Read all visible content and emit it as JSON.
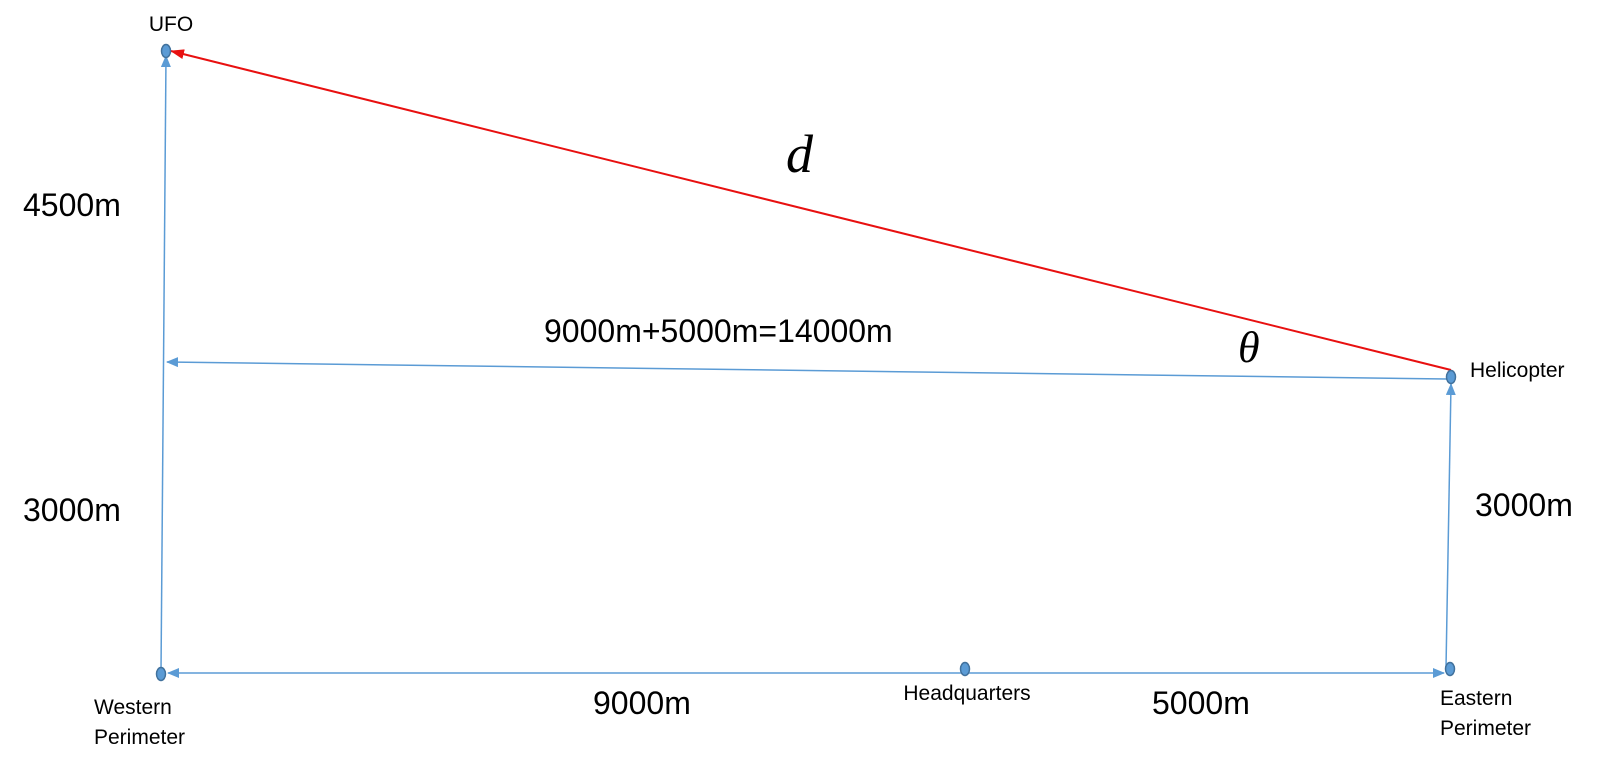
{
  "points": [
    {
      "label_lines": [
        "UFO"
      ]
    },
    {
      "label_lines": [
        "Helicopter"
      ]
    },
    {
      "label_lines": [
        "Western",
        "Perimeter"
      ]
    },
    {
      "label_lines": [
        "Headquarters"
      ]
    },
    {
      "label_lines": [
        "Eastern",
        "Perimeter"
      ]
    }
  ],
  "distances": [
    "4500m",
    "3000m",
    "3000m",
    "9000m+5000m=14000m",
    "9000m",
    "5000m"
  ],
  "symbols": {
    "distance": "d",
    "angle": "θ"
  }
}
